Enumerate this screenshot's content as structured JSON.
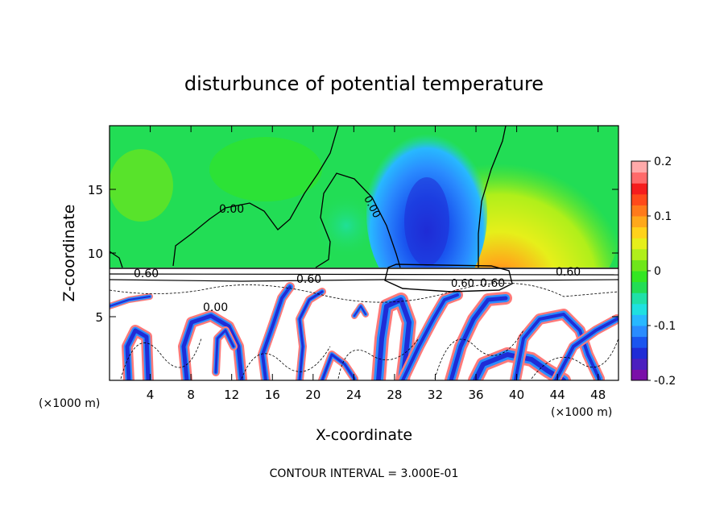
{
  "chart_data": {
    "type": "heatmap",
    "title": "disturbunce of potential temperature",
    "xlabel": "X-coordinate",
    "ylabel": "Z-coordinate",
    "x_unit": "(×1000 m)",
    "xlim": [
      0,
      50
    ],
    "ylim": [
      0,
      20
    ],
    "x_ticks": [
      4,
      8,
      12,
      16,
      20,
      24,
      28,
      32,
      36,
      40,
      44,
      48
    ],
    "y_ticks": [
      5,
      10,
      15
    ],
    "colorbar": {
      "range": [
        -0.2,
        0.2
      ],
      "tick_labels": [
        "0.2",
        "0.1",
        "0",
        "-0.1",
        "-0.2"
      ],
      "tick_values": [
        0.2,
        0.1,
        0,
        -0.1,
        -0.2
      ],
      "colors": [
        "#7a0fa8",
        "#4b1fbf",
        "#1f2cd6",
        "#1a55ef",
        "#2a8cff",
        "#28b8ff",
        "#1fe0e0",
        "#1fe0a8",
        "#22dd55",
        "#33e622",
        "#6fe61a",
        "#b0ef1a",
        "#e6ef1a",
        "#ffd21a",
        "#ffa81a",
        "#ff7a1a",
        "#ff4a1a",
        "#f51d1d",
        "#ff6a6a",
        "#ffaaaa"
      ]
    },
    "contour_labels": [
      "0.00",
      "0.00",
      "0.00",
      "0.60",
      "0.60",
      "0.60",
      "0.60",
      "0.60"
    ],
    "footer": "CONTOUR INTERVAL = 3.000E-01"
  }
}
